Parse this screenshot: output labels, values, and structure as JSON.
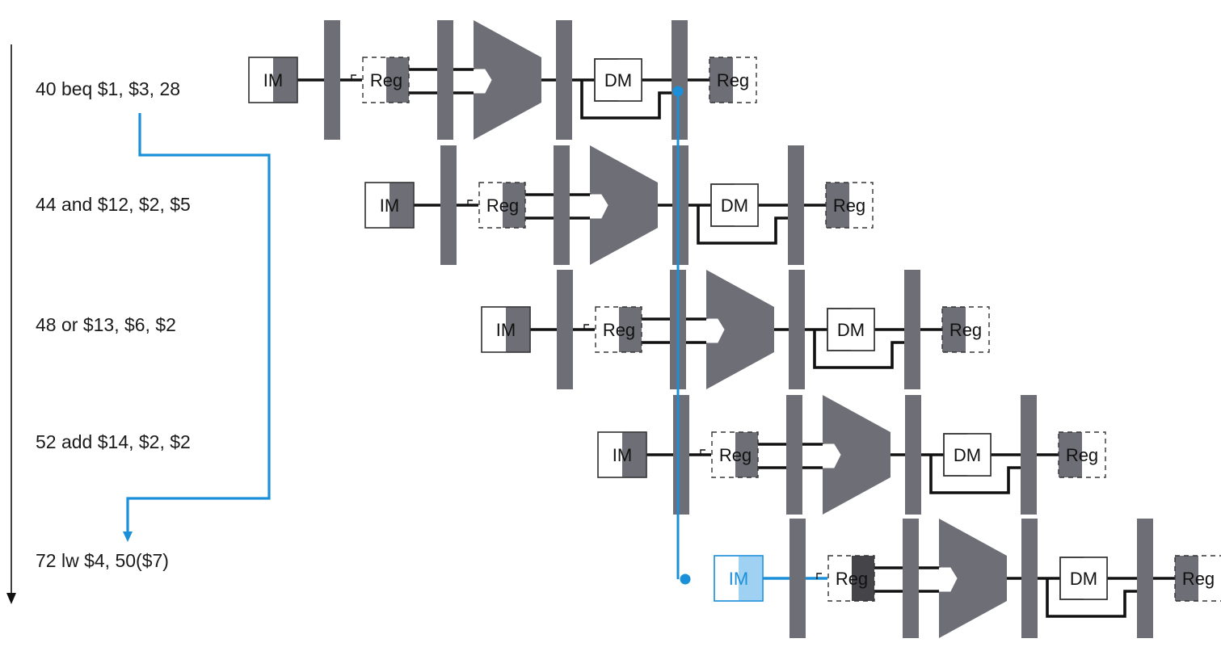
{
  "instructions": [
    {
      "text": "40 beq $1, $3, 28"
    },
    {
      "text": "44 and $12, $2, $5"
    },
    {
      "text": "48 or $13, $6, $2"
    },
    {
      "text": "52 add $14, $2, $2"
    },
    {
      "text": "72 lw $4, 50($7)"
    }
  ],
  "stage_labels": {
    "im": "IM",
    "reg": "Reg",
    "dm": "DM"
  },
  "colors": {
    "accent": "#1b8fd8",
    "accent_fill": "#9fd2f2",
    "gray": "#6e6e76",
    "dark_gray": "#444449",
    "line": "#111111"
  }
}
